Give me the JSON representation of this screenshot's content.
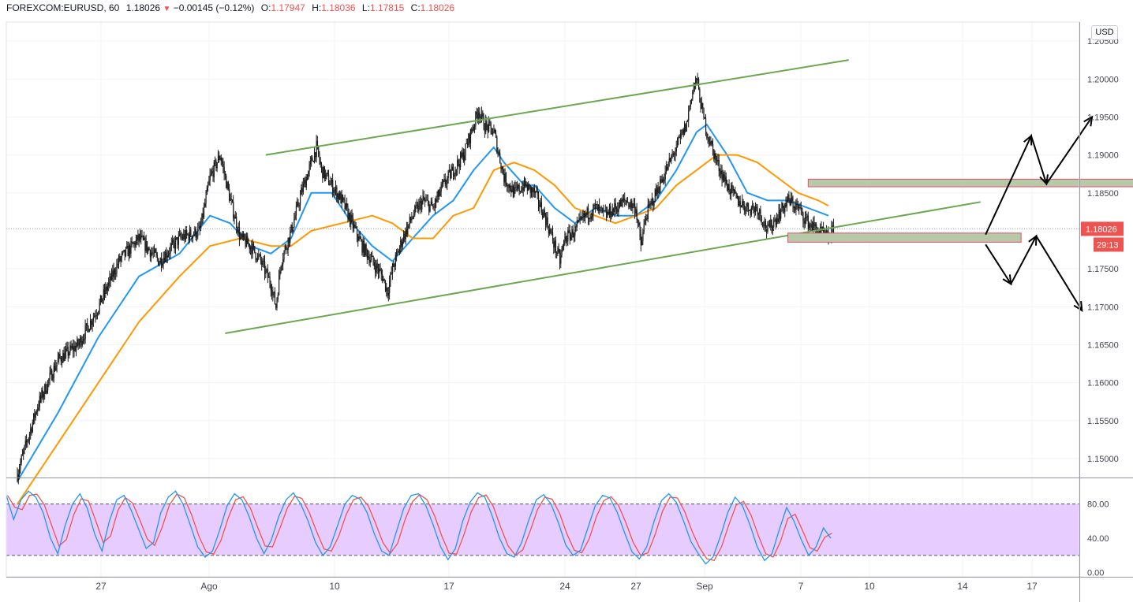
{
  "header": {
    "symbol": "FOREXCOM:EURUSD, 60",
    "last": "1.18026",
    "change": "−0.00145 (−0.12%)",
    "o_label": "O:",
    "o_value": "1.17947",
    "h_label": "H:",
    "h_value": "1.18036",
    "l_label": "L:",
    "l_value": "1.17815",
    "c_label": "C:",
    "c_value": "1.18026"
  },
  "currency_button": "USD",
  "colors": {
    "blue_ma": "#2196f3",
    "orange_ma": "#ff9800",
    "channel": "#6aa84f",
    "zone_fill": "#b7c9a8",
    "zone_border": "#e05263",
    "price_tag": "#ef5350",
    "stoch_k": "#2196f3",
    "stoch_d": "#ef5350",
    "stoch_band": "#e6ccff"
  },
  "chart_data": [
    {
      "type": "line",
      "pane": "price",
      "ylim": [
        1.1475,
        1.2075
      ],
      "y_ticks": [
        "1.20500",
        "1.20000",
        "1.19500",
        "1.19000",
        "1.18500",
        "1.17500",
        "1.17000",
        "1.16500",
        "1.16000",
        "1.15500",
        "1.15000"
      ],
      "last_price_label": "1.18026",
      "countdown_label": "29:13",
      "x_ticks": [
        "27",
        "Ago",
        "10",
        "17",
        "24",
        "27",
        "Sep",
        "7",
        "10",
        "14",
        "17"
      ],
      "close_series": [
        [
          0,
          1.148
        ],
        [
          20,
          1.157
        ],
        [
          40,
          1.163
        ],
        [
          60,
          1.165
        ],
        [
          80,
          1.17
        ],
        [
          100,
          1.176
        ],
        [
          120,
          1.179
        ],
        [
          140,
          1.176
        ],
        [
          160,
          1.179
        ],
        [
          180,
          1.18
        ],
        [
          190,
          1.187
        ],
        [
          200,
          1.19
        ],
        [
          210,
          1.184
        ],
        [
          220,
          1.179
        ],
        [
          230,
          1.178
        ],
        [
          240,
          1.176
        ],
        [
          250,
          1.173
        ],
        [
          255,
          1.17
        ],
        [
          260,
          1.176
        ],
        [
          270,
          1.18
        ],
        [
          280,
          1.185
        ],
        [
          290,
          1.189
        ],
        [
          295,
          1.191
        ],
        [
          300,
          1.188
        ],
        [
          310,
          1.186
        ],
        [
          320,
          1.184
        ],
        [
          330,
          1.181
        ],
        [
          340,
          1.178
        ],
        [
          350,
          1.176
        ],
        [
          360,
          1.174
        ],
        [
          365,
          1.172
        ],
        [
          370,
          1.175
        ],
        [
          380,
          1.179
        ],
        [
          390,
          1.182
        ],
        [
          400,
          1.184
        ],
        [
          410,
          1.183
        ],
        [
          420,
          1.186
        ],
        [
          430,
          1.188
        ],
        [
          440,
          1.19
        ],
        [
          450,
          1.194
        ],
        [
          455,
          1.196
        ],
        [
          460,
          1.194
        ],
        [
          470,
          1.193
        ],
        [
          475,
          1.19
        ],
        [
          480,
          1.187
        ],
        [
          490,
          1.185
        ],
        [
          500,
          1.186
        ],
        [
          510,
          1.185
        ],
        [
          520,
          1.182
        ],
        [
          530,
          1.178
        ],
        [
          535,
          1.176
        ],
        [
          540,
          1.179
        ],
        [
          550,
          1.18
        ],
        [
          560,
          1.182
        ],
        [
          570,
          1.183
        ],
        [
          580,
          1.182
        ],
        [
          590,
          1.183
        ],
        [
          600,
          1.184
        ],
        [
          610,
          1.183
        ],
        [
          615,
          1.178
        ],
        [
          620,
          1.182
        ],
        [
          630,
          1.185
        ],
        [
          640,
          1.188
        ],
        [
          650,
          1.191
        ],
        [
          660,
          1.194
        ],
        [
          665,
          1.198
        ],
        [
          670,
          1.2
        ],
        [
          675,
          1.196
        ],
        [
          680,
          1.193
        ],
        [
          690,
          1.189
        ],
        [
          700,
          1.186
        ],
        [
          710,
          1.184
        ],
        [
          720,
          1.183
        ],
        [
          730,
          1.183
        ],
        [
          740,
          1.18
        ],
        [
          750,
          1.182
        ],
        [
          760,
          1.184
        ],
        [
          770,
          1.183
        ],
        [
          780,
          1.181
        ],
        [
          790,
          1.18
        ],
        [
          800,
          1.179
        ],
        [
          805,
          1.1802
        ]
      ],
      "series": [
        {
          "name": "",
          "color": "#2196f3",
          "values": [
            [
              0,
              1.147
            ],
            [
              40,
              1.156
            ],
            [
              80,
              1.166
            ],
            [
              120,
              1.174
            ],
            [
              160,
              1.177
            ],
            [
              190,
              1.182
            ],
            [
              210,
              1.181
            ],
            [
              230,
              1.178
            ],
            [
              250,
              1.177
            ],
            [
              270,
              1.179
            ],
            [
              290,
              1.185
            ],
            [
              310,
              1.185
            ],
            [
              330,
              1.181
            ],
            [
              350,
              1.178
            ],
            [
              370,
              1.176
            ],
            [
              390,
              1.179
            ],
            [
              410,
              1.182
            ],
            [
              430,
              1.184
            ],
            [
              450,
              1.188
            ],
            [
              470,
              1.191
            ],
            [
              480,
              1.189
            ],
            [
              500,
              1.186
            ],
            [
              510,
              1.186
            ],
            [
              530,
              1.183
            ],
            [
              550,
              1.181
            ],
            [
              570,
              1.183
            ],
            [
              590,
              1.182
            ],
            [
              610,
              1.182
            ],
            [
              630,
              1.184
            ],
            [
              650,
              1.188
            ],
            [
              670,
              1.193
            ],
            [
              680,
              1.194
            ],
            [
              700,
              1.19
            ],
            [
              720,
              1.185
            ],
            [
              740,
              1.184
            ],
            [
              760,
              1.184
            ],
            [
              780,
              1.183
            ],
            [
              800,
              1.182
            ]
          ]
        },
        {
          "name": "",
          "color": "#ff9800",
          "values": [
            [
              0,
              1.144
            ],
            [
              40,
              1.152
            ],
            [
              80,
              1.16
            ],
            [
              120,
              1.168
            ],
            [
              160,
              1.174
            ],
            [
              190,
              1.178
            ],
            [
              220,
              1.179
            ],
            [
              250,
              1.178
            ],
            [
              270,
              1.178
            ],
            [
              290,
              1.18
            ],
            [
              320,
              1.181
            ],
            [
              350,
              1.182
            ],
            [
              370,
              1.181
            ],
            [
              390,
              1.179
            ],
            [
              410,
              1.179
            ],
            [
              430,
              1.182
            ],
            [
              450,
              1.183
            ],
            [
              470,
              1.188
            ],
            [
              490,
              1.189
            ],
            [
              510,
              1.188
            ],
            [
              530,
              1.186
            ],
            [
              550,
              1.183
            ],
            [
              570,
              1.182
            ],
            [
              590,
              1.181
            ],
            [
              610,
              1.182
            ],
            [
              630,
              1.183
            ],
            [
              650,
              1.186
            ],
            [
              670,
              1.188
            ],
            [
              690,
              1.19
            ],
            [
              710,
              1.19
            ],
            [
              730,
              1.189
            ],
            [
              750,
              1.187
            ],
            [
              770,
              1.185
            ],
            [
              790,
              1.184
            ],
            [
              800,
              1.1833
            ]
          ]
        }
      ],
      "channel_upper": [
        [
          245,
          1.19
        ],
        [
          820,
          1.2025
        ]
      ],
      "channel_lower": [
        [
          205,
          1.1665
        ],
        [
          950,
          1.1838
        ]
      ],
      "zones": [
        [
          780,
          1115,
          1.1868,
          1.1858
        ],
        [
          760,
          990,
          1.1797,
          1.1785
        ]
      ],
      "scenario_up": [
        [
          955,
          1.1795
        ],
        [
          1000,
          1.1925
        ],
        [
          1015,
          1.1862
        ],
        [
          1060,
          1.195
        ]
      ],
      "scenario_down": [
        [
          955,
          1.1782
        ],
        [
          980,
          1.173
        ],
        [
          1005,
          1.1793
        ],
        [
          1050,
          1.1695
        ]
      ]
    },
    {
      "type": "line",
      "pane": "oscillator",
      "ylim": [
        -5,
        110
      ],
      "y_ticks": [
        "80.00",
        "40.00",
        "0.00"
      ],
      "band": [
        20,
        80
      ],
      "series": [
        {
          "name": "",
          "color": "#2196f3"
        },
        {
          "name": "",
          "color": "#ef5350"
        }
      ],
      "values": [
        90,
        62,
        85,
        95,
        88,
        70,
        40,
        22,
        55,
        80,
        92,
        75,
        45,
        25,
        60,
        85,
        90,
        72,
        50,
        28,
        35,
        70,
        88,
        95,
        80,
        55,
        30,
        18,
        25,
        50,
        78,
        92,
        85,
        65,
        40,
        22,
        38,
        65,
        85,
        93,
        80,
        60,
        35,
        20,
        30,
        55,
        80,
        90,
        86,
        70,
        45,
        25,
        20,
        48,
        75,
        90,
        92,
        78,
        55,
        30,
        15,
        28,
        60,
        82,
        93,
        88,
        66,
        40,
        22,
        18,
        35,
        62,
        85,
        91,
        80,
        58,
        32,
        20,
        26,
        52,
        78,
        90,
        87,
        70,
        46,
        24,
        16,
        30,
        60,
        84,
        92,
        82,
        60,
        36,
        22,
        10,
        18,
        42,
        70,
        88,
        78,
        56,
        30,
        14,
        22,
        50,
        76,
        60,
        38,
        20,
        30,
        52,
        40
      ]
    }
  ]
}
